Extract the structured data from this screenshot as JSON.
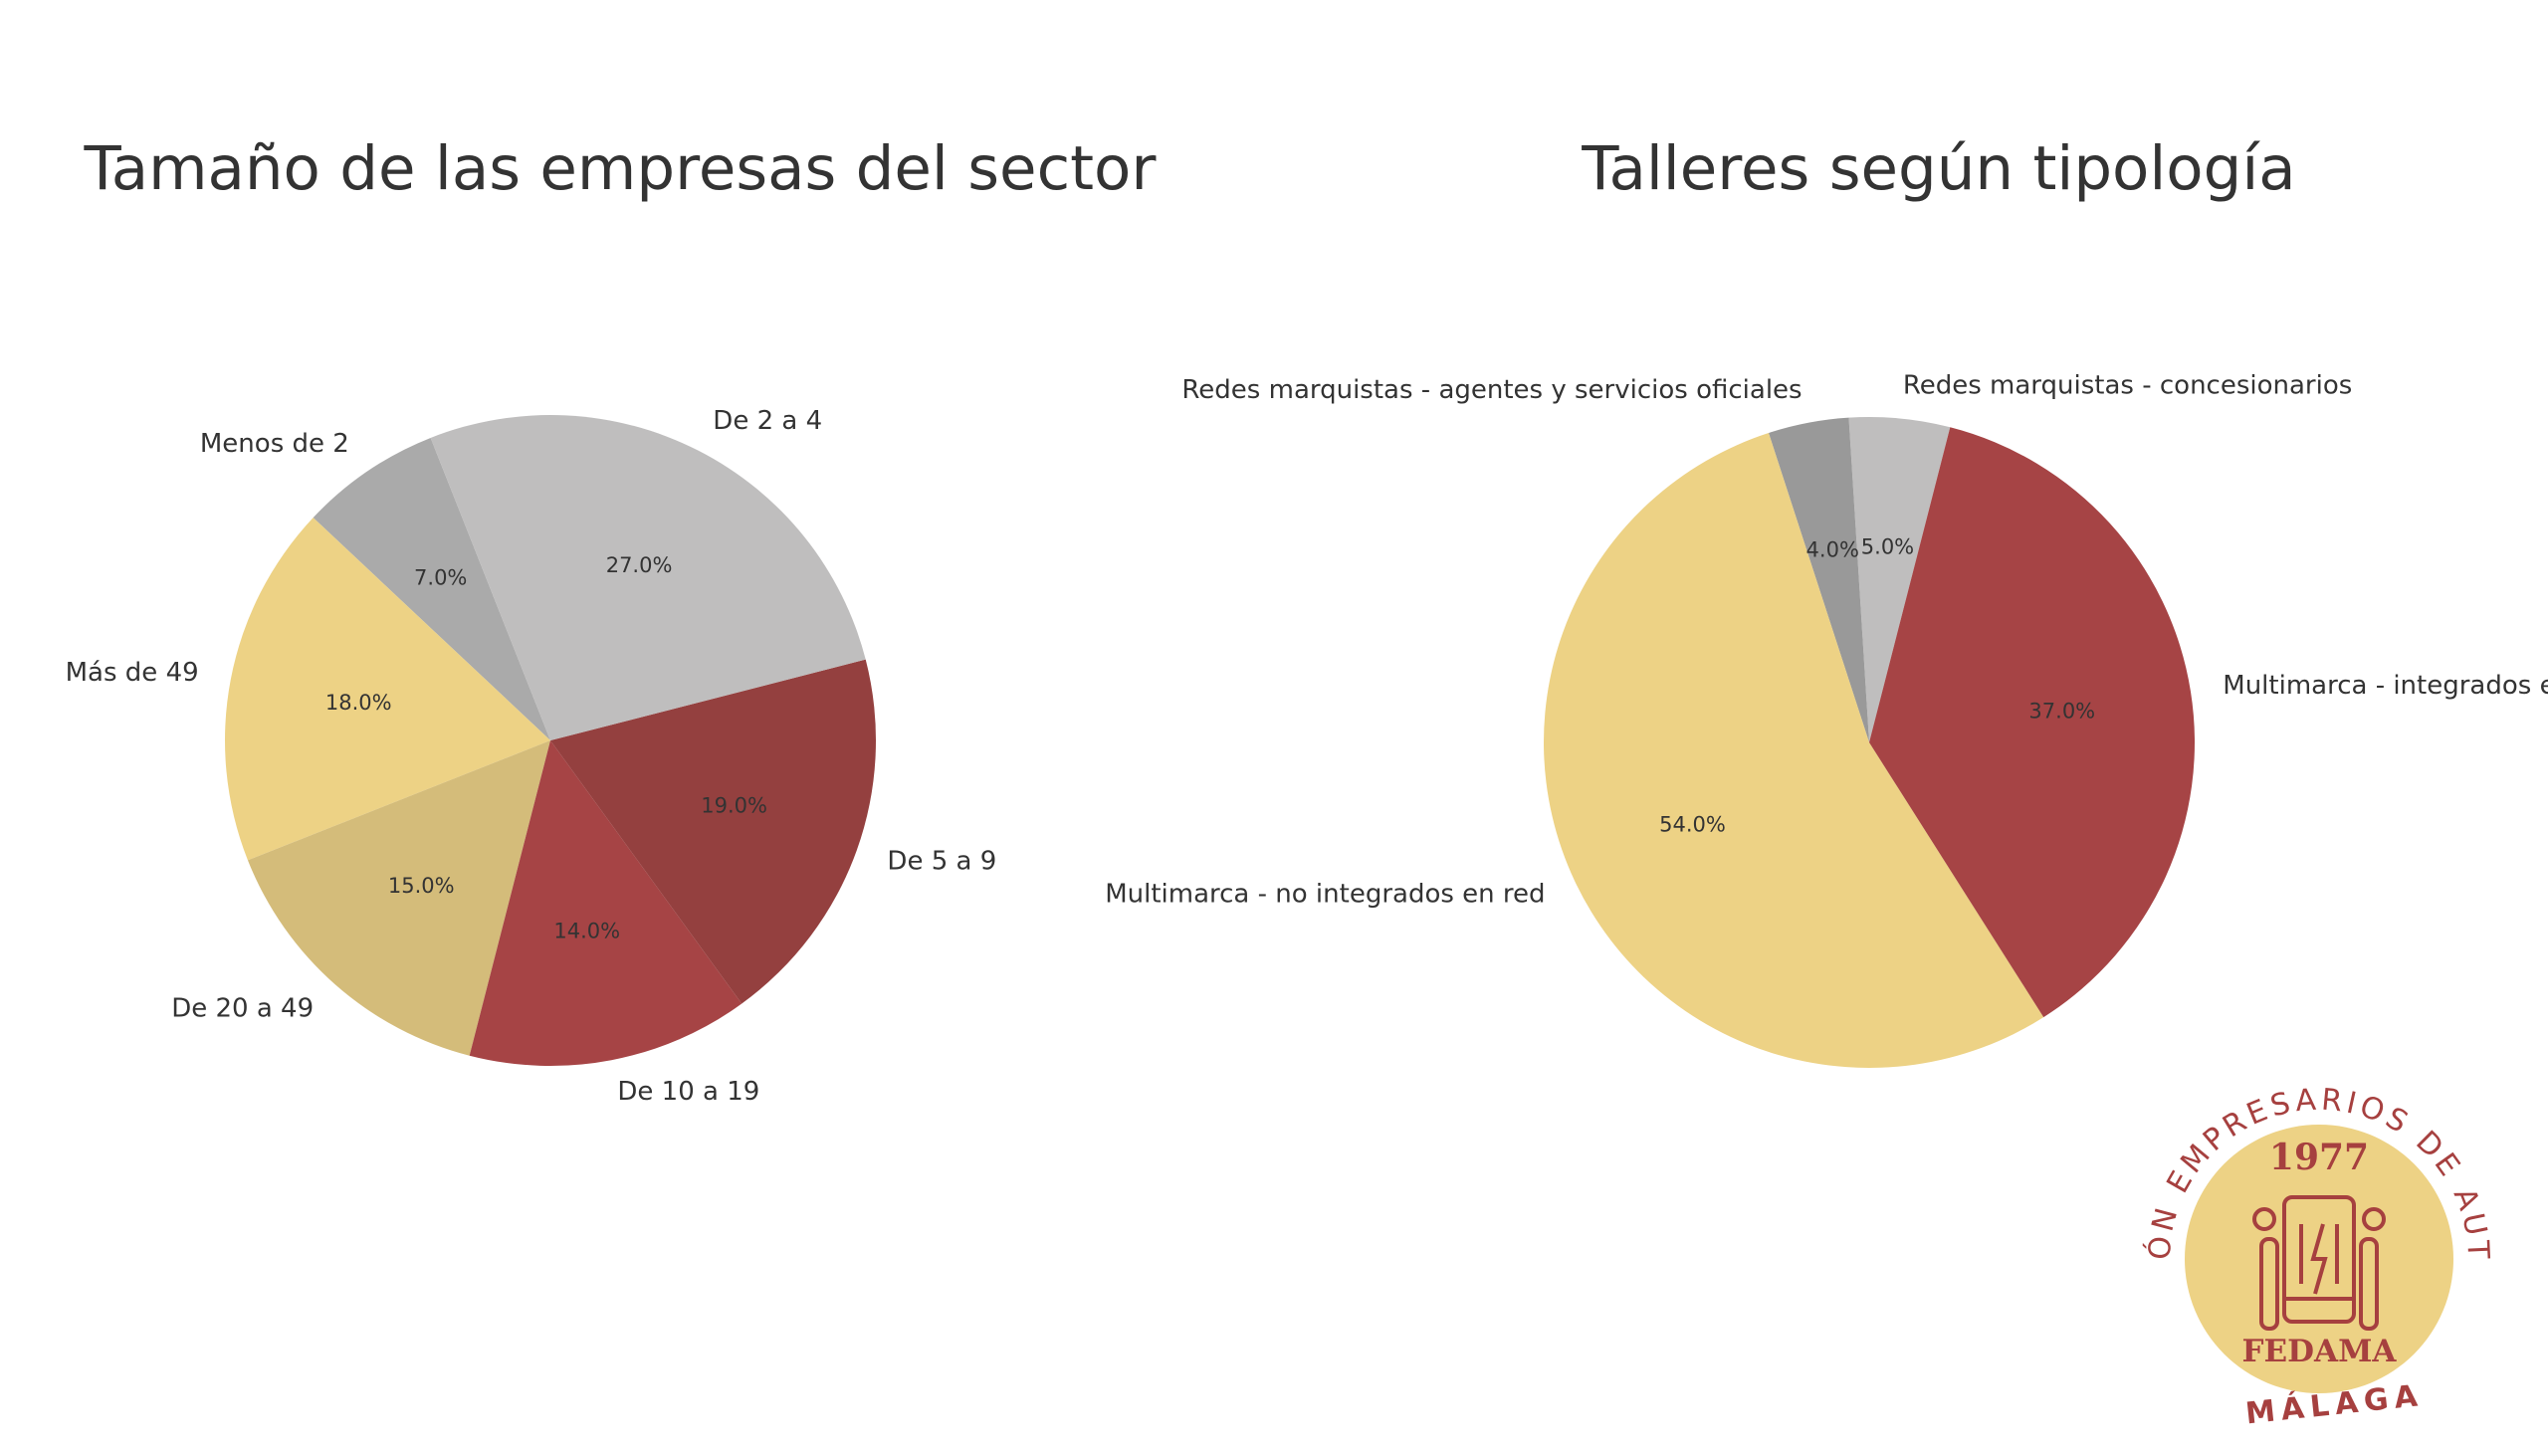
{
  "chart_data": [
    {
      "type": "pie",
      "title": "Tamaño de las empresas del sector",
      "start_angle_deg": 111.6,
      "direction": "counterclockwise",
      "slices": [
        {
          "label": "Menos de 2",
          "value": 7.0,
          "pct_label": "7.0%",
          "color": "#aaaaaa"
        },
        {
          "label": "Más de 49",
          "value": 18.0,
          "pct_label": "18.0%",
          "color": "#edd285"
        },
        {
          "label": "De 20 a 49",
          "value": 15.0,
          "pct_label": "15.0%",
          "color": "#d4bc7a"
        },
        {
          "label": "De 10 a 19",
          "value": 14.0,
          "pct_label": "14.0%",
          "color": "#a64445"
        },
        {
          "label": "De 5 a 9",
          "value": 19.0,
          "pct_label": "19.0%",
          "color": "#94403f"
        },
        {
          "label": "De 2 a 4",
          "value": 27.0,
          "pct_label": "27.0%",
          "color": "#bfbebe"
        }
      ]
    },
    {
      "type": "pie",
      "title": "Talleres según tipología",
      "start_angle_deg": 75.6,
      "direction": "counterclockwise",
      "slices": [
        {
          "label": "Redes marquistas - concesionarios",
          "value": 5.0,
          "pct_label": "5.0%",
          "color": "#bfbebe"
        },
        {
          "label": "Redes marquistas - agentes y servicios oficiales",
          "value": 4.0,
          "pct_label": "4.0%",
          "color": "#999999"
        },
        {
          "label": "Multimarca - no integrados en red",
          "value": 54.0,
          "pct_label": "54.0%",
          "color": "#edd285"
        },
        {
          "label": "Multimarca - integrados en red",
          "value": 37.0,
          "pct_label": "37.0%",
          "color": "#a64445"
        }
      ]
    }
  ],
  "logo": {
    "year": "1977",
    "name": "FEDAMA",
    "ring_text": "FEDERACIÓN EMPRESARIOS DE AUTOMOCIÓN",
    "city": "MÁLAGA",
    "primary_color": "#a6403f",
    "fill_color": "#edd285"
  }
}
